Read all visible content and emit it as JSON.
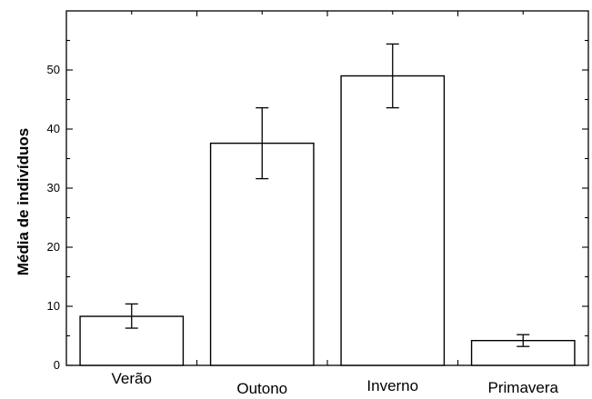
{
  "chart_data": {
    "type": "bar",
    "title": "",
    "xlabel": "",
    "ylabel": "Média de indivíduos",
    "categories": [
      "Verão",
      "Outono",
      "Inverno",
      "Primavera"
    ],
    "values": [
      8.3,
      37.6,
      49.0,
      4.2
    ],
    "error_low": [
      6.3,
      31.6,
      43.6,
      3.2
    ],
    "error_high": [
      10.4,
      43.6,
      54.4,
      5.2
    ],
    "ylim": [
      0,
      60
    ],
    "yticks": [
      0,
      10,
      20,
      30,
      40,
      50
    ],
    "ytick_labels": [
      "0",
      "10",
      "20",
      "30",
      "40",
      "50"
    ],
    "grid": false,
    "legend": "none",
    "colors": {
      "bar_fill": "#ffffff",
      "bar_edge": "#000000"
    }
  }
}
